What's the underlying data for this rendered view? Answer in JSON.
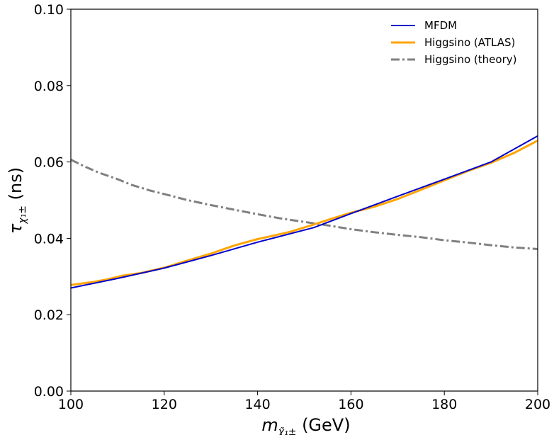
{
  "chart_data": {
    "type": "line",
    "xlabel": {
      "symbol": "m",
      "subscript": "χ̃₁±",
      "unit": " (GeV)"
    },
    "ylabel": {
      "symbol": "τ",
      "subscript": "χ₁±",
      "unit": " (ns)"
    },
    "xlim": [
      100,
      200
    ],
    "ylim": [
      0.0,
      0.1
    ],
    "xticks": [
      "100",
      "120",
      "140",
      "160",
      "180",
      "200"
    ],
    "yticks": [
      "0.00",
      "0.02",
      "0.04",
      "0.06",
      "0.08",
      "0.10"
    ],
    "grid": false,
    "legend_position": "top-right",
    "series": [
      {
        "name": "MFDM",
        "color": "#0000cc",
        "style": "solid",
        "x": [
          100,
          110,
          120,
          130,
          140,
          152,
          160,
          170,
          180,
          190,
          200
        ],
        "y": [
          0.027,
          0.0295,
          0.0322,
          0.0355,
          0.039,
          0.0428,
          0.0465,
          0.051,
          0.0555,
          0.06,
          0.0668
        ]
      },
      {
        "name": "Higgsino (ATLAS)",
        "color": "#ffa500",
        "style": "solid",
        "x": [
          100,
          102,
          105,
          108,
          111,
          115,
          120,
          125,
          130,
          135,
          140,
          143,
          147,
          152,
          156,
          160,
          165,
          170,
          175,
          180,
          185,
          190,
          195,
          200
        ],
        "y": [
          0.0278,
          0.0281,
          0.0286,
          0.0293,
          0.0302,
          0.0309,
          0.0323,
          0.0342,
          0.036,
          0.0381,
          0.0398,
          0.0406,
          0.0417,
          0.0436,
          0.0452,
          0.0467,
          0.0483,
          0.0503,
          0.0527,
          0.0552,
          0.0576,
          0.0598,
          0.0624,
          0.0656
        ]
      },
      {
        "name": "Higgsino (theory)",
        "color": "#808080",
        "style": "dashdot",
        "x": [
          100,
          103,
          106,
          110,
          113,
          117,
          120,
          125,
          130,
          135,
          140,
          145,
          150,
          155,
          160,
          165,
          170,
          175,
          180,
          185,
          190,
          195,
          200
        ],
        "y": [
          0.0606,
          0.0588,
          0.0572,
          0.0555,
          0.054,
          0.0525,
          0.0516,
          0.05,
          0.0487,
          0.0475,
          0.0463,
          0.0452,
          0.0443,
          0.0434,
          0.0424,
          0.0416,
          0.0409,
          0.0403,
          0.0395,
          0.0389,
          0.0382,
          0.0376,
          0.0372
        ]
      }
    ]
  }
}
